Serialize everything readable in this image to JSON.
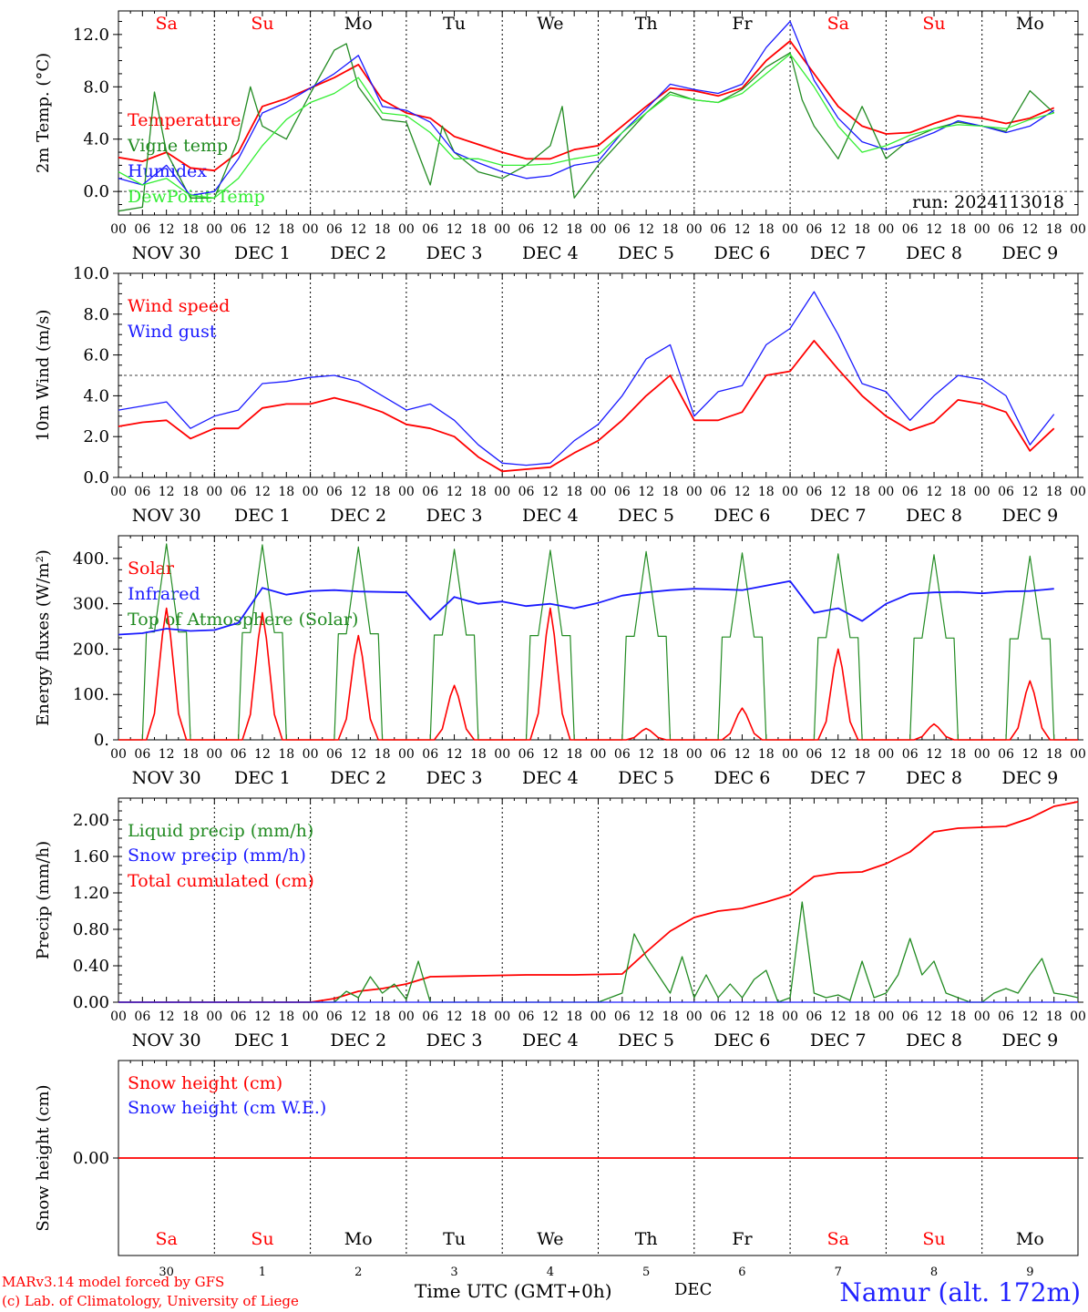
{
  "run_label": "run: 2024113018",
  "hour_ticks": [
    "00",
    "06",
    "12",
    "18"
  ],
  "day_names": [
    "Sa",
    "Su",
    "Mo",
    "Tu",
    "We",
    "Th",
    "Fr",
    "Sa",
    "Su",
    "Mo"
  ],
  "weekend_days": [
    0,
    1,
    7,
    8
  ],
  "date_labels": [
    "NOV 30",
    "DEC  1",
    "DEC  2",
    "DEC  3",
    "DEC  4",
    "DEC  5",
    "DEC  6",
    "DEC  7",
    "DEC  8",
    "DEC  9"
  ],
  "bottom_day_numbers": [
    "30",
    "1",
    "2",
    "3",
    "4",
    "5",
    "6",
    "7",
    "8",
    "9"
  ],
  "footer": {
    "model_line": "MARv3.14 model forced by GFS",
    "lab_line": "(c) Lab. of Climatology, University of Liege",
    "time_axis": "Time UTC (GMT+0h)",
    "month": "DEC",
    "station": "Namur (alt. 172m)"
  },
  "colors": {
    "red": "#ff0000",
    "green": "#228b22",
    "blue": "#1a1aff",
    "lightgreen": "#33ee33",
    "weekend": "#ff0000",
    "weekday": "#000000"
  },
  "chart_data": [
    {
      "type": "line",
      "ylabel": "2m Temp. (°C)",
      "ylim": [
        -1.8,
        13.8
      ],
      "yticks": [
        "0.0",
        "4.0",
        "8.0",
        "12.0"
      ],
      "ytick_values": [
        0,
        4,
        8,
        12
      ],
      "dashed_ref": 0,
      "x_unit": "hours since NOV 30 00 UTC",
      "legend": [
        "Temperature",
        "Vigne temp",
        "Humidex",
        "DewPoint Temp"
      ],
      "series": [
        {
          "name": "Temperature",
          "color": "red",
          "x": [
            0,
            6,
            12,
            18,
            24,
            30,
            36,
            42,
            48,
            54,
            60,
            66,
            72,
            78,
            84,
            90,
            96,
            102,
            108,
            114,
            120,
            126,
            132,
            138,
            144,
            150,
            156,
            162,
            168,
            174,
            180,
            186,
            192,
            198,
            204,
            210,
            216,
            222,
            228,
            234
          ],
          "y": [
            2.6,
            2.3,
            3.0,
            1.8,
            1.6,
            3.0,
            6.5,
            7.1,
            7.9,
            8.7,
            9.7,
            7.0,
            6.0,
            5.6,
            4.2,
            3.6,
            3.0,
            2.5,
            2.5,
            3.2,
            3.5,
            5.0,
            6.5,
            7.9,
            7.7,
            7.3,
            7.9,
            10.0,
            11.5,
            9.0,
            6.5,
            5.0,
            4.4,
            4.5,
            5.2,
            5.8,
            5.6,
            5.2,
            5.6,
            6.4
          ]
        },
        {
          "name": "Vigne temp",
          "color": "green",
          "x": [
            0,
            6,
            9,
            12,
            18,
            24,
            30,
            33,
            36,
            42,
            48,
            54,
            57,
            60,
            66,
            72,
            78,
            81,
            84,
            90,
            96,
            102,
            108,
            111,
            114,
            120,
            126,
            132,
            138,
            144,
            150,
            156,
            162,
            168,
            171,
            174,
            180,
            186,
            192,
            198,
            204,
            210,
            216,
            222,
            228,
            234
          ],
          "y": [
            -1.5,
            -1.2,
            7.6,
            3.0,
            -0.5,
            -0.5,
            4.0,
            8.0,
            5.0,
            4.0,
            7.5,
            10.8,
            11.3,
            8.0,
            5.5,
            5.3,
            0.5,
            5.0,
            3.0,
            1.5,
            1.0,
            2.0,
            3.5,
            6.5,
            -0.5,
            2.0,
            4.0,
            6.0,
            7.6,
            7.0,
            6.8,
            7.8,
            9.5,
            10.6,
            7.0,
            5.0,
            2.5,
            6.5,
            2.5,
            4.0,
            4.8,
            5.3,
            5.0,
            4.6,
            7.7,
            6.0
          ]
        },
        {
          "name": "Humidex",
          "color": "blue",
          "x": [
            0,
            6,
            12,
            18,
            24,
            30,
            36,
            42,
            48,
            54,
            60,
            66,
            72,
            78,
            84,
            90,
            96,
            102,
            108,
            114,
            120,
            126,
            132,
            138,
            144,
            150,
            156,
            162,
            168,
            174,
            180,
            186,
            192,
            198,
            204,
            210,
            216,
            222,
            228,
            234
          ],
          "y": [
            1.0,
            0.5,
            2.0,
            -0.3,
            0.0,
            2.5,
            6.0,
            6.8,
            7.9,
            9.0,
            10.4,
            6.5,
            6.2,
            5.3,
            3.0,
            2.2,
            1.5,
            1.0,
            1.2,
            2.0,
            2.3,
            4.5,
            6.3,
            8.2,
            7.8,
            7.5,
            8.2,
            11.0,
            13.0,
            8.5,
            5.6,
            3.8,
            3.2,
            3.8,
            4.5,
            5.4,
            5.0,
            4.5,
            5.0,
            6.2
          ]
        },
        {
          "name": "DewPoint Temp",
          "color": "lightgreen",
          "x": [
            0,
            6,
            12,
            18,
            24,
            30,
            36,
            42,
            48,
            54,
            60,
            66,
            72,
            78,
            84,
            90,
            96,
            102,
            108,
            114,
            120,
            126,
            132,
            138,
            144,
            150,
            156,
            162,
            168,
            174,
            180,
            186,
            192,
            198,
            204,
            210,
            216,
            222,
            228,
            234
          ],
          "y": [
            1.5,
            0.5,
            1.0,
            -0.3,
            -0.5,
            1.0,
            3.5,
            5.5,
            6.8,
            7.5,
            8.7,
            6.0,
            5.8,
            4.5,
            2.5,
            2.5,
            2.0,
            2.0,
            2.1,
            2.5,
            2.8,
            4.5,
            6.0,
            7.4,
            7.0,
            6.8,
            7.5,
            9.0,
            10.5,
            8.0,
            5.0,
            3.0,
            3.5,
            4.3,
            4.8,
            5.1,
            5.0,
            4.8,
            5.5,
            6.0
          ]
        }
      ]
    },
    {
      "type": "line",
      "ylabel": "10m Wind (m/s)",
      "ylim": [
        0,
        10
      ],
      "yticks": [
        "0.0",
        "2.0",
        "4.0",
        "6.0",
        "8.0",
        "10.0"
      ],
      "ytick_values": [
        0,
        2,
        4,
        6,
        8,
        10
      ],
      "dashed_ref": 5,
      "legend": [
        "Wind speed",
        "Wind gust"
      ],
      "series": [
        {
          "name": "Wind speed",
          "color": "red",
          "x": [
            0,
            6,
            12,
            18,
            24,
            30,
            36,
            42,
            48,
            54,
            60,
            66,
            72,
            78,
            84,
            90,
            96,
            102,
            108,
            114,
            120,
            126,
            132,
            138,
            144,
            150,
            156,
            162,
            168,
            174,
            180,
            186,
            192,
            198,
            204,
            210,
            216,
            222,
            228,
            234
          ],
          "y": [
            2.5,
            2.7,
            2.8,
            1.9,
            2.4,
            2.4,
            3.4,
            3.6,
            3.6,
            3.9,
            3.6,
            3.2,
            2.6,
            2.4,
            2.0,
            1.0,
            0.3,
            0.4,
            0.5,
            1.2,
            1.8,
            2.8,
            4.0,
            5.0,
            2.8,
            2.8,
            3.2,
            5.0,
            5.2,
            6.7,
            5.3,
            4.0,
            3.0,
            2.3,
            2.7,
            3.8,
            3.6,
            3.2,
            1.3,
            2.4
          ]
        },
        {
          "name": "Wind gust",
          "color": "blue",
          "x": [
            0,
            6,
            12,
            18,
            24,
            30,
            36,
            42,
            48,
            54,
            60,
            66,
            72,
            78,
            84,
            90,
            96,
            102,
            108,
            114,
            120,
            126,
            132,
            138,
            144,
            150,
            156,
            162,
            168,
            174,
            180,
            186,
            192,
            198,
            204,
            210,
            216,
            222,
            228,
            234
          ],
          "y": [
            3.3,
            3.5,
            3.7,
            2.4,
            3.0,
            3.3,
            4.6,
            4.7,
            4.9,
            5.0,
            4.7,
            4.0,
            3.3,
            3.6,
            2.8,
            1.6,
            0.7,
            0.6,
            0.7,
            1.8,
            2.6,
            4.0,
            5.8,
            6.5,
            3.0,
            4.2,
            4.5,
            6.5,
            7.3,
            9.1,
            7.0,
            4.6,
            4.2,
            2.8,
            4.0,
            5.0,
            4.8,
            4.0,
            1.6,
            3.1
          ]
        }
      ]
    },
    {
      "type": "line",
      "ylabel": "Energy fluxes (W/m²)",
      "ylim": [
        0,
        450
      ],
      "yticks": [
        "0.",
        "100.",
        "200.",
        "300.",
        "400."
      ],
      "ytick_values": [
        0,
        100,
        200,
        300,
        400
      ],
      "legend": [
        "Solar",
        "Infrared",
        "Top of Atmosphere (Solar)"
      ],
      "daily_peaks_solar": [
        290,
        280,
        230,
        120,
        290,
        25,
        70,
        200,
        35,
        130
      ],
      "daily_peak_toa": [
        432,
        430,
        425,
        420,
        418,
        415,
        412,
        410,
        408,
        405
      ],
      "infrared": {
        "x": [
          0,
          6,
          12,
          18,
          24,
          30,
          36,
          42,
          48,
          54,
          60,
          66,
          72,
          78,
          84,
          90,
          96,
          102,
          108,
          114,
          120,
          126,
          132,
          138,
          144,
          150,
          156,
          162,
          168,
          174,
          180,
          186,
          192,
          198,
          204,
          210,
          216,
          222,
          228,
          234
        ],
        "y": [
          232,
          235,
          245,
          240,
          242,
          258,
          335,
          320,
          328,
          330,
          327,
          326,
          325,
          265,
          315,
          300,
          305,
          295,
          300,
          290,
          302,
          318,
          325,
          330,
          333,
          332,
          330,
          340,
          350,
          280,
          290,
          262,
          300,
          322,
          325,
          326,
          323,
          327,
          328,
          333
        ]
      }
    },
    {
      "type": "line",
      "ylabel": "Precip (mm/h)",
      "ylim": [
        0,
        2.24
      ],
      "yticks": [
        "0.00",
        "0.40",
        "0.80",
        "1.20",
        "1.60",
        "2.00"
      ],
      "ytick_values": [
        0,
        0.4,
        0.8,
        1.2,
        1.6,
        2.0
      ],
      "legend": [
        "Liquid precip (mm/h)",
        "Snow precip (mm/h)",
        "Total cumulated (cm)"
      ],
      "series": [
        {
          "name": "Total cumulated (cm)",
          "color": "red",
          "x": [
            0,
            48,
            54,
            60,
            66,
            72,
            78,
            90,
            102,
            114,
            126,
            132,
            138,
            144,
            150,
            156,
            162,
            168,
            174,
            180,
            186,
            192,
            198,
            204,
            210,
            216,
            222,
            228,
            234,
            240
          ],
          "y": [
            0,
            0,
            0.04,
            0.12,
            0.15,
            0.2,
            0.28,
            0.29,
            0.3,
            0.3,
            0.31,
            0.55,
            0.78,
            0.93,
            1.0,
            1.03,
            1.1,
            1.18,
            1.38,
            1.42,
            1.43,
            1.52,
            1.65,
            1.87,
            1.91,
            1.92,
            1.93,
            2.02,
            2.15,
            2.2
          ]
        },
        {
          "name": "Liquid precip (mm/h)",
          "color": "green",
          "x": [
            0,
            54,
            57,
            60,
            63,
            66,
            69,
            72,
            75,
            78,
            120,
            126,
            129,
            132,
            135,
            138,
            141,
            144,
            147,
            150,
            153,
            156,
            159,
            162,
            165,
            168,
            171,
            174,
            177,
            180,
            183,
            186,
            189,
            192,
            195,
            198,
            201,
            204,
            207,
            210,
            213,
            216,
            219,
            222,
            225,
            228,
            231,
            234,
            237,
            240
          ],
          "y": [
            0,
            0,
            0.12,
            0.05,
            0.28,
            0.1,
            0.2,
            0.03,
            0.45,
            0.0,
            0,
            0.1,
            0.75,
            0.5,
            0.3,
            0.1,
            0.5,
            0.05,
            0.3,
            0.05,
            0.2,
            0.05,
            0.25,
            0.35,
            0.0,
            0.05,
            1.1,
            0.1,
            0.05,
            0.08,
            0.02,
            0.45,
            0.05,
            0.1,
            0.3,
            0.7,
            0.3,
            0.45,
            0.1,
            0.05,
            0.0,
            0.0,
            0.1,
            0.15,
            0.1,
            0.3,
            0.48,
            0.1,
            0.08,
            0.05
          ]
        },
        {
          "name": "Snow precip (mm/h)",
          "color": "blue",
          "x": [
            0,
            240
          ],
          "y": [
            0,
            0
          ]
        }
      ]
    },
    {
      "type": "line",
      "ylabel": "Snow height (cm)",
      "ylim": [
        -1,
        1
      ],
      "yticks": [
        "0.00"
      ],
      "ytick_values": [
        0
      ],
      "legend": [
        "Snow height (cm)",
        "Snow height (cm W.E.)"
      ],
      "series": [
        {
          "name": "Snow height (cm)",
          "color": "red",
          "x": [
            0,
            240
          ],
          "y": [
            0,
            0
          ]
        }
      ]
    }
  ]
}
